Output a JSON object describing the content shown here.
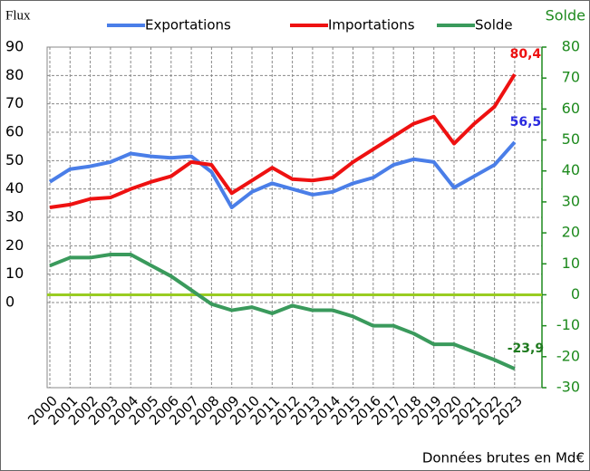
{
  "chart_data": {
    "type": "line",
    "y_label": "Flux",
    "y2_label": "Solde",
    "note": "Données brutes en Md€",
    "categories": [
      "2000",
      "2001",
      "2002",
      "2003",
      "2004",
      "2005",
      "2006",
      "2007",
      "2008",
      "2009",
      "2010",
      "2011",
      "2012",
      "2013",
      "2014",
      "2015",
      "2016",
      "2017",
      "2018",
      "2019",
      "2020",
      "2021",
      "2022",
      "2023"
    ],
    "series": [
      {
        "name": "Exportations",
        "color": "#4a7ee8",
        "values": [
          42.5,
          47,
          48,
          49.5,
          52.5,
          51.5,
          51,
          51.5,
          46,
          33.5,
          39,
          42,
          40,
          38,
          39,
          42,
          44,
          48.5,
          50.5,
          49.5,
          40.5,
          44.5,
          48.5,
          56.5
        ],
        "value_labels": [
          null,
          null,
          null,
          null,
          null,
          null,
          null,
          null,
          null,
          null,
          null,
          null,
          null,
          null,
          null,
          null,
          null,
          null,
          null,
          null,
          null,
          null,
          null,
          "56,5"
        ],
        "label_color": "#2a2adf"
      },
      {
        "name": "Importations",
        "color": "#ee1111",
        "values": [
          33.5,
          34.5,
          36.5,
          37,
          40,
          42.5,
          44.5,
          49.5,
          48.5,
          38.5,
          43,
          47.5,
          43.5,
          43,
          44,
          49.5,
          54,
          58.5,
          63,
          65.5,
          56,
          63,
          69,
          80.4
        ],
        "value_labels": [
          null,
          null,
          null,
          null,
          null,
          null,
          null,
          null,
          null,
          null,
          null,
          null,
          null,
          null,
          null,
          null,
          null,
          null,
          null,
          null,
          null,
          null,
          null,
          "80,4"
        ],
        "label_color": "#ee1111"
      },
      {
        "name": "Solde",
        "color": "#3a9a5c",
        "axis": "y2",
        "values": [
          9.4,
          12,
          12,
          13,
          13,
          9.5,
          6,
          1.5,
          -3,
          -5,
          -4,
          -6,
          -3.5,
          -5,
          -5,
          -7,
          -10,
          -10,
          -12.5,
          -16,
          -16,
          -18.5,
          -21,
          -23.9
        ],
        "value_labels": [
          null,
          null,
          null,
          null,
          null,
          null,
          null,
          null,
          null,
          null,
          null,
          null,
          null,
          null,
          null,
          null,
          null,
          null,
          null,
          null,
          null,
          null,
          null,
          "-23,9"
        ],
        "label_color": "#1e7a1e"
      }
    ],
    "ylim": [
      -30,
      90
    ],
    "yticks": [
      0,
      10,
      20,
      30,
      40,
      50,
      60,
      70,
      80,
      90
    ],
    "y2lim": [
      -30,
      80
    ],
    "y2ticks": [
      -30,
      -20,
      -10,
      0,
      10,
      20,
      30,
      40,
      50,
      60,
      70,
      80
    ],
    "y2_color": "#1e8a1e",
    "hline": {
      "value": 0,
      "axis": "y2",
      "color": "#99cc22"
    },
    "grid": true
  }
}
